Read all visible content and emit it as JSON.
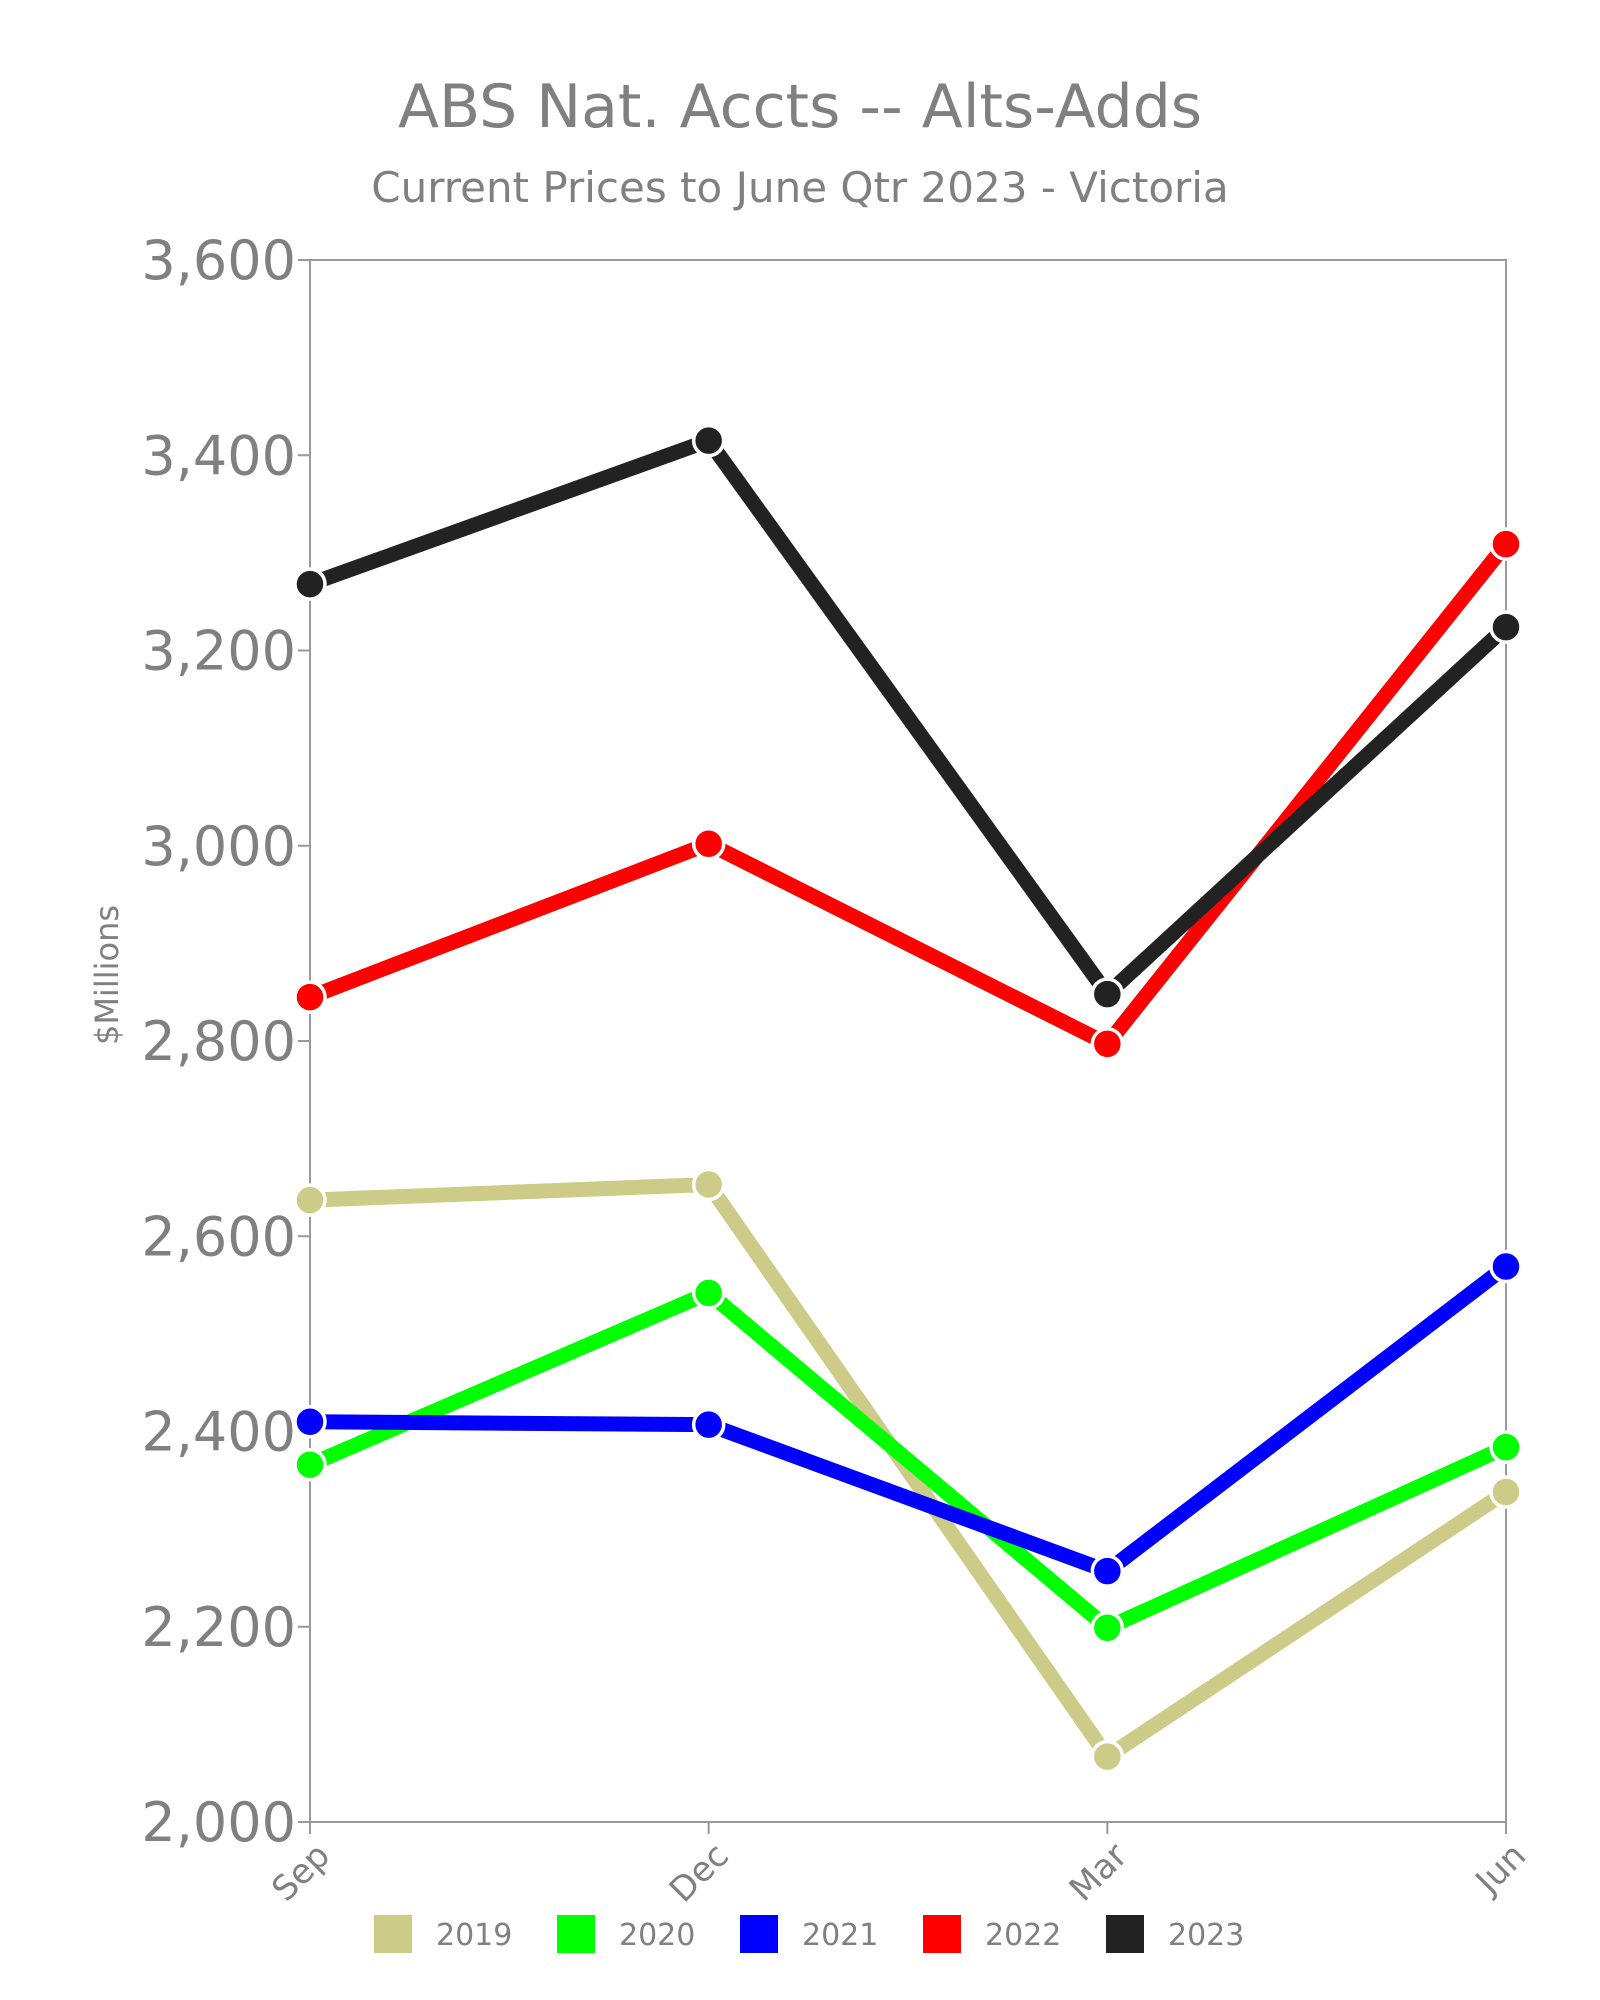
{
  "chart_data": {
    "type": "line",
    "title": "ABS Nat. Accts -- Alts-Adds",
    "subtitle": "Current Prices to June Qtr 2023 - Victoria",
    "ylabel": "$Millions",
    "xlabel": "",
    "categories": [
      "Sep",
      "Dec",
      "Mar",
      "Jun"
    ],
    "ylim": [
      2000,
      3600
    ],
    "yticks": [
      "2,000",
      "2,200",
      "2,400",
      "2,600",
      "2,800",
      "3,000",
      "3,200",
      "3,400",
      "3,600"
    ],
    "legend_position": "bottom",
    "series": [
      {
        "name": "2019",
        "color": "#cccc88",
        "values": [
          2637,
          2653,
          2067,
          2338
        ]
      },
      {
        "name": "2020",
        "color": "#00ff00",
        "values": [
          2366,
          2542,
          2199,
          2384
        ]
      },
      {
        "name": "2021",
        "color": "#0000ff",
        "values": [
          2410,
          2407,
          2257,
          2569
        ]
      },
      {
        "name": "2022",
        "color": "#ff0000",
        "values": [
          2845,
          3002,
          2797,
          3309
        ]
      },
      {
        "name": "2023",
        "color": "#222222",
        "values": [
          3268,
          3415,
          2848,
          3224
        ]
      }
    ]
  }
}
